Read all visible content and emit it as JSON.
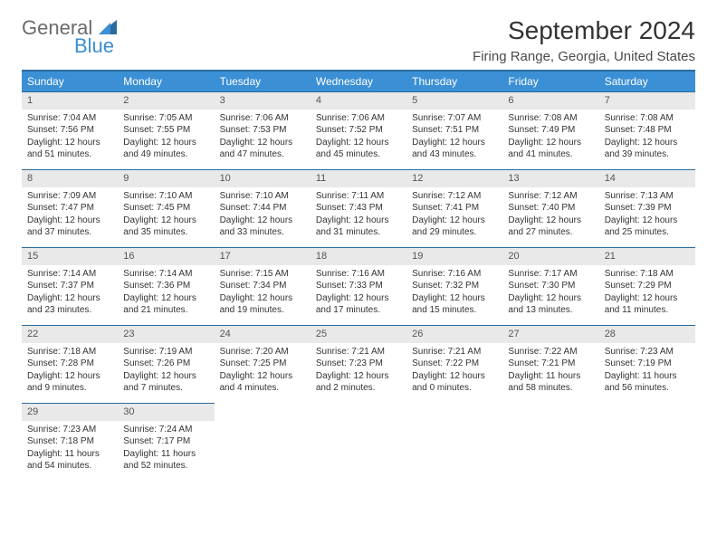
{
  "branding": {
    "word1": "General",
    "word2": "Blue",
    "icon_color": "#2a6aa0"
  },
  "header": {
    "title": "September 2024",
    "location": "Firing Range, Georgia, United States"
  },
  "colors": {
    "header_bg": "#3b8fd4",
    "header_border": "#2a6aa0",
    "daynum_bg": "#e9e9e9",
    "text": "#333333"
  },
  "weekdays": [
    "Sunday",
    "Monday",
    "Tuesday",
    "Wednesday",
    "Thursday",
    "Friday",
    "Saturday"
  ],
  "weeks": [
    [
      {
        "n": "1",
        "sr": "Sunrise: 7:04 AM",
        "ss": "Sunset: 7:56 PM",
        "d1": "Daylight: 12 hours",
        "d2": "and 51 minutes."
      },
      {
        "n": "2",
        "sr": "Sunrise: 7:05 AM",
        "ss": "Sunset: 7:55 PM",
        "d1": "Daylight: 12 hours",
        "d2": "and 49 minutes."
      },
      {
        "n": "3",
        "sr": "Sunrise: 7:06 AM",
        "ss": "Sunset: 7:53 PM",
        "d1": "Daylight: 12 hours",
        "d2": "and 47 minutes."
      },
      {
        "n": "4",
        "sr": "Sunrise: 7:06 AM",
        "ss": "Sunset: 7:52 PM",
        "d1": "Daylight: 12 hours",
        "d2": "and 45 minutes."
      },
      {
        "n": "5",
        "sr": "Sunrise: 7:07 AM",
        "ss": "Sunset: 7:51 PM",
        "d1": "Daylight: 12 hours",
        "d2": "and 43 minutes."
      },
      {
        "n": "6",
        "sr": "Sunrise: 7:08 AM",
        "ss": "Sunset: 7:49 PM",
        "d1": "Daylight: 12 hours",
        "d2": "and 41 minutes."
      },
      {
        "n": "7",
        "sr": "Sunrise: 7:08 AM",
        "ss": "Sunset: 7:48 PM",
        "d1": "Daylight: 12 hours",
        "d2": "and 39 minutes."
      }
    ],
    [
      {
        "n": "8",
        "sr": "Sunrise: 7:09 AM",
        "ss": "Sunset: 7:47 PM",
        "d1": "Daylight: 12 hours",
        "d2": "and 37 minutes."
      },
      {
        "n": "9",
        "sr": "Sunrise: 7:10 AM",
        "ss": "Sunset: 7:45 PM",
        "d1": "Daylight: 12 hours",
        "d2": "and 35 minutes."
      },
      {
        "n": "10",
        "sr": "Sunrise: 7:10 AM",
        "ss": "Sunset: 7:44 PM",
        "d1": "Daylight: 12 hours",
        "d2": "and 33 minutes."
      },
      {
        "n": "11",
        "sr": "Sunrise: 7:11 AM",
        "ss": "Sunset: 7:43 PM",
        "d1": "Daylight: 12 hours",
        "d2": "and 31 minutes."
      },
      {
        "n": "12",
        "sr": "Sunrise: 7:12 AM",
        "ss": "Sunset: 7:41 PM",
        "d1": "Daylight: 12 hours",
        "d2": "and 29 minutes."
      },
      {
        "n": "13",
        "sr": "Sunrise: 7:12 AM",
        "ss": "Sunset: 7:40 PM",
        "d1": "Daylight: 12 hours",
        "d2": "and 27 minutes."
      },
      {
        "n": "14",
        "sr": "Sunrise: 7:13 AM",
        "ss": "Sunset: 7:39 PM",
        "d1": "Daylight: 12 hours",
        "d2": "and 25 minutes."
      }
    ],
    [
      {
        "n": "15",
        "sr": "Sunrise: 7:14 AM",
        "ss": "Sunset: 7:37 PM",
        "d1": "Daylight: 12 hours",
        "d2": "and 23 minutes."
      },
      {
        "n": "16",
        "sr": "Sunrise: 7:14 AM",
        "ss": "Sunset: 7:36 PM",
        "d1": "Daylight: 12 hours",
        "d2": "and 21 minutes."
      },
      {
        "n": "17",
        "sr": "Sunrise: 7:15 AM",
        "ss": "Sunset: 7:34 PM",
        "d1": "Daylight: 12 hours",
        "d2": "and 19 minutes."
      },
      {
        "n": "18",
        "sr": "Sunrise: 7:16 AM",
        "ss": "Sunset: 7:33 PM",
        "d1": "Daylight: 12 hours",
        "d2": "and 17 minutes."
      },
      {
        "n": "19",
        "sr": "Sunrise: 7:16 AM",
        "ss": "Sunset: 7:32 PM",
        "d1": "Daylight: 12 hours",
        "d2": "and 15 minutes."
      },
      {
        "n": "20",
        "sr": "Sunrise: 7:17 AM",
        "ss": "Sunset: 7:30 PM",
        "d1": "Daylight: 12 hours",
        "d2": "and 13 minutes."
      },
      {
        "n": "21",
        "sr": "Sunrise: 7:18 AM",
        "ss": "Sunset: 7:29 PM",
        "d1": "Daylight: 12 hours",
        "d2": "and 11 minutes."
      }
    ],
    [
      {
        "n": "22",
        "sr": "Sunrise: 7:18 AM",
        "ss": "Sunset: 7:28 PM",
        "d1": "Daylight: 12 hours",
        "d2": "and 9 minutes."
      },
      {
        "n": "23",
        "sr": "Sunrise: 7:19 AM",
        "ss": "Sunset: 7:26 PM",
        "d1": "Daylight: 12 hours",
        "d2": "and 7 minutes."
      },
      {
        "n": "24",
        "sr": "Sunrise: 7:20 AM",
        "ss": "Sunset: 7:25 PM",
        "d1": "Daylight: 12 hours",
        "d2": "and 4 minutes."
      },
      {
        "n": "25",
        "sr": "Sunrise: 7:21 AM",
        "ss": "Sunset: 7:23 PM",
        "d1": "Daylight: 12 hours",
        "d2": "and 2 minutes."
      },
      {
        "n": "26",
        "sr": "Sunrise: 7:21 AM",
        "ss": "Sunset: 7:22 PM",
        "d1": "Daylight: 12 hours",
        "d2": "and 0 minutes."
      },
      {
        "n": "27",
        "sr": "Sunrise: 7:22 AM",
        "ss": "Sunset: 7:21 PM",
        "d1": "Daylight: 11 hours",
        "d2": "and 58 minutes."
      },
      {
        "n": "28",
        "sr": "Sunrise: 7:23 AM",
        "ss": "Sunset: 7:19 PM",
        "d1": "Daylight: 11 hours",
        "d2": "and 56 minutes."
      }
    ],
    [
      {
        "n": "29",
        "sr": "Sunrise: 7:23 AM",
        "ss": "Sunset: 7:18 PM",
        "d1": "Daylight: 11 hours",
        "d2": "and 54 minutes."
      },
      {
        "n": "30",
        "sr": "Sunrise: 7:24 AM",
        "ss": "Sunset: 7:17 PM",
        "d1": "Daylight: 11 hours",
        "d2": "and 52 minutes."
      },
      null,
      null,
      null,
      null,
      null
    ]
  ]
}
